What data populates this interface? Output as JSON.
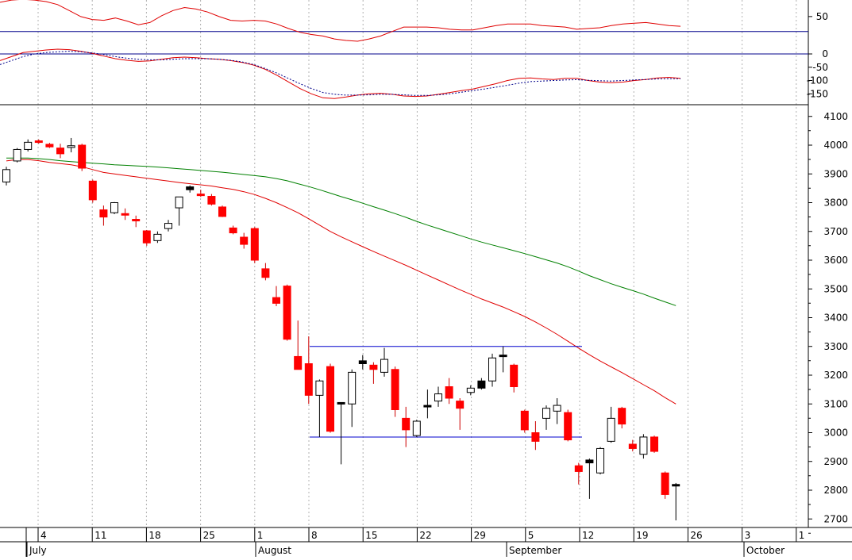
{
  "chart_data": [
    {
      "type": "line",
      "panel": "oscillator",
      "series": [
        {
          "color": "#e00000",
          "values": [
            69,
            72,
            73,
            72,
            70,
            66,
            58,
            50,
            46,
            45,
            48,
            44,
            39,
            42,
            51,
            58,
            62,
            60,
            56,
            50,
            45,
            44,
            45,
            44,
            40,
            34,
            29,
            26,
            24,
            20,
            18,
            17,
            20,
            24,
            30,
            36,
            36,
            36,
            35,
            33,
            32,
            32,
            35,
            38,
            40,
            40,
            40,
            38,
            37,
            36,
            33,
            34,
            35,
            38,
            40,
            41,
            42,
            40,
            38,
            37
          ]
        }
      ],
      "ticks": [
        50
      ],
      "ylim": [
        0,
        70
      ],
      "reference_lines": [
        30,
        0
      ],
      "grid": "vertical dotted"
    },
    {
      "type": "line",
      "panel": "macd",
      "series": [
        {
          "color": "#e00000",
          "style": "solid",
          "values": [
            -25,
            -10,
            5,
            10,
            15,
            18,
            16,
            10,
            2,
            -8,
            -18,
            -24,
            -28,
            -26,
            -20,
            -14,
            -12,
            -14,
            -18,
            -20,
            -25,
            -32,
            -42,
            -58,
            -80,
            -105,
            -130,
            -150,
            -165,
            -168,
            -162,
            -155,
            -150,
            -148,
            -152,
            -158,
            -160,
            -158,
            -152,
            -145,
            -138,
            -132,
            -122,
            -112,
            -100,
            -92,
            -90,
            -94,
            -96,
            -92,
            -92,
            -100,
            -106,
            -108,
            -106,
            -100,
            -96,
            -90,
            -88,
            -92
          ]
        },
        {
          "color": "#00008b",
          "style": "dotted",
          "values": [
            -40,
            -25,
            -10,
            0,
            5,
            8,
            10,
            8,
            4,
            -2,
            -10,
            -16,
            -20,
            -22,
            -22,
            -20,
            -18,
            -18,
            -18,
            -20,
            -24,
            -30,
            -40,
            -55,
            -72,
            -92,
            -112,
            -130,
            -145,
            -152,
            -155,
            -155,
            -154,
            -152,
            -152,
            -154,
            -156,
            -156,
            -154,
            -150,
            -144,
            -138,
            -132,
            -125,
            -118,
            -110,
            -104,
            -102,
            -100,
            -98,
            -97,
            -99,
            -101,
            -102,
            -100,
            -98,
            -96,
            -94,
            -93,
            -93
          ]
        }
      ],
      "ticks": [
        0,
        -50,
        -100,
        -150
      ],
      "ylim": [
        -175,
        20
      ],
      "reference_lines": [
        0
      ],
      "grid": "vertical dotted"
    },
    {
      "type": "candlestick",
      "panel": "price",
      "y_ticks": [
        4100,
        4000,
        3900,
        3800,
        3700,
        3600,
        3500,
        3400,
        3300,
        3200,
        3100,
        3000,
        2900,
        2800,
        2700
      ],
      "ylim": [
        2580,
        4170
      ],
      "x_tick_labels": [
        "4",
        "11",
        "18",
        "25",
        "1",
        "8",
        "15",
        "22",
        "29",
        "5",
        "12",
        "19",
        "26",
        "3",
        "1"
      ],
      "month_labels": [
        "July",
        "August",
        "September",
        "October"
      ],
      "grid": "vertical dotted",
      "candles": [
        {
          "o": 3872,
          "h": 3925,
          "l": 3860,
          "c": 3915,
          "color": "white"
        },
        {
          "o": 3945,
          "h": 3990,
          "l": 3940,
          "c": 3985,
          "color": "white"
        },
        {
          "o": 3985,
          "h": 4020,
          "l": 3978,
          "c": 4010,
          "color": "white"
        },
        {
          "o": 4015,
          "h": 4020,
          "l": 4005,
          "c": 4010,
          "color": "red"
        },
        {
          "o": 4003,
          "h": 4008,
          "l": 3990,
          "c": 3994,
          "color": "red"
        },
        {
          "o": 3990,
          "h": 4005,
          "l": 3955,
          "c": 3970,
          "color": "red"
        },
        {
          "o": 3992,
          "h": 4025,
          "l": 3975,
          "c": 3998,
          "color": "white"
        },
        {
          "o": 4000,
          "h": 4005,
          "l": 3910,
          "c": 3920,
          "color": "red"
        },
        {
          "o": 3875,
          "h": 3880,
          "l": 3800,
          "c": 3810,
          "color": "red"
        },
        {
          "o": 3750,
          "h": 3790,
          "l": 3720,
          "c": 3775,
          "color": "red"
        },
        {
          "o": 3765,
          "h": 3802,
          "l": 3760,
          "c": 3800,
          "color": "white"
        },
        {
          "o": 3762,
          "h": 3780,
          "l": 3740,
          "c": 3760,
          "color": "red"
        },
        {
          "o": 3742,
          "h": 3755,
          "l": 3715,
          "c": 3740,
          "color": "red"
        },
        {
          "o": 3702,
          "h": 3705,
          "l": 3650,
          "c": 3660,
          "color": "red"
        },
        {
          "o": 3668,
          "h": 3700,
          "l": 3660,
          "c": 3690,
          "color": "white"
        },
        {
          "o": 3710,
          "h": 3740,
          "l": 3700,
          "c": 3728,
          "color": "white"
        },
        {
          "o": 3782,
          "h": 3820,
          "l": 3720,
          "c": 3820,
          "color": "white"
        },
        {
          "o": 3845,
          "h": 3860,
          "l": 3835,
          "c": 3855,
          "color": "black"
        },
        {
          "o": 3830,
          "h": 3845,
          "l": 3820,
          "c": 3825,
          "color": "red"
        },
        {
          "o": 3822,
          "h": 3830,
          "l": 3790,
          "c": 3795,
          "color": "red"
        },
        {
          "o": 3785,
          "h": 3790,
          "l": 3750,
          "c": 3752,
          "color": "red"
        },
        {
          "o": 3712,
          "h": 3720,
          "l": 3690,
          "c": 3695,
          "color": "red"
        },
        {
          "o": 3680,
          "h": 3695,
          "l": 3640,
          "c": 3655,
          "color": "red"
        },
        {
          "o": 3710,
          "h": 3715,
          "l": 3590,
          "c": 3600,
          "color": "red"
        },
        {
          "o": 3570,
          "h": 3590,
          "l": 3530,
          "c": 3540,
          "color": "red"
        },
        {
          "o": 3470,
          "h": 3510,
          "l": 3440,
          "c": 3450,
          "color": "red"
        },
        {
          "o": 3510,
          "h": 3515,
          "l": 3320,
          "c": 3325,
          "color": "red"
        },
        {
          "o": 3265,
          "h": 3390,
          "l": 3230,
          "c": 3220,
          "color": "red"
        },
        {
          "o": 3240,
          "h": 3335,
          "l": 3100,
          "c": 3130,
          "color": "red"
        },
        {
          "o": 3130,
          "h": 3185,
          "l": 2985,
          "c": 3180,
          "color": "white"
        },
        {
          "o": 3230,
          "h": 3240,
          "l": 3000,
          "c": 3005,
          "color": "red"
        },
        {
          "o": 3105,
          "h": 3105,
          "l": 2890,
          "c": 3100,
          "color": "black"
        },
        {
          "o": 3100,
          "h": 3220,
          "l": 3020,
          "c": 3210,
          "color": "white"
        },
        {
          "o": 3240,
          "h": 3270,
          "l": 3220,
          "c": 3250,
          "color": "black"
        },
        {
          "o": 3235,
          "h": 3245,
          "l": 3170,
          "c": 3220,
          "color": "red"
        },
        {
          "o": 3210,
          "h": 3295,
          "l": 3195,
          "c": 3255,
          "color": "white"
        },
        {
          "o": 3220,
          "h": 3230,
          "l": 3055,
          "c": 3080,
          "color": "red"
        },
        {
          "o": 3050,
          "h": 3090,
          "l": 2950,
          "c": 3010,
          "color": "red"
        },
        {
          "o": 2990,
          "h": 3045,
          "l": 2985,
          "c": 3040,
          "color": "white"
        },
        {
          "o": 3090,
          "h": 3150,
          "l": 3050,
          "c": 3095,
          "color": "black"
        },
        {
          "o": 3110,
          "h": 3160,
          "l": 3090,
          "c": 3135,
          "color": "white"
        },
        {
          "o": 3160,
          "h": 3190,
          "l": 3100,
          "c": 3120,
          "color": "red"
        },
        {
          "o": 3110,
          "h": 3120,
          "l": 3010,
          "c": 3085,
          "color": "red"
        },
        {
          "o": 3140,
          "h": 3165,
          "l": 3130,
          "c": 3155,
          "color": "white"
        },
        {
          "o": 3155,
          "h": 3190,
          "l": 3150,
          "c": 3180,
          "color": "black"
        },
        {
          "o": 3180,
          "h": 3275,
          "l": 3160,
          "c": 3260,
          "color": "white"
        },
        {
          "o": 3270,
          "h": 3300,
          "l": 3210,
          "c": 3265,
          "color": "black"
        },
        {
          "o": 3235,
          "h": 3240,
          "l": 3140,
          "c": 3160,
          "color": "red"
        },
        {
          "o": 3075,
          "h": 3080,
          "l": 3000,
          "c": 3010,
          "color": "red"
        },
        {
          "o": 3000,
          "h": 3040,
          "l": 2940,
          "c": 2970,
          "color": "red"
        },
        {
          "o": 3050,
          "h": 3095,
          "l": 3010,
          "c": 3085,
          "color": "white"
        },
        {
          "o": 3075,
          "h": 3120,
          "l": 3030,
          "c": 3095,
          "color": "white"
        },
        {
          "o": 3070,
          "h": 3080,
          "l": 2970,
          "c": 2975,
          "color": "red"
        },
        {
          "o": 2885,
          "h": 2895,
          "l": 2820,
          "c": 2865,
          "color": "red"
        },
        {
          "o": 2895,
          "h": 2910,
          "l": 2770,
          "c": 2905,
          "color": "black"
        },
        {
          "o": 2860,
          "h": 2950,
          "l": 2855,
          "c": 2945,
          "color": "white"
        },
        {
          "o": 2970,
          "h": 3090,
          "l": 2965,
          "c": 3050,
          "color": "white"
        },
        {
          "o": 3085,
          "h": 3090,
          "l": 3015,
          "c": 3030,
          "color": "red"
        },
        {
          "o": 2960,
          "h": 2975,
          "l": 2935,
          "c": 2945,
          "color": "red"
        },
        {
          "o": 2925,
          "h": 2995,
          "l": 2910,
          "c": 2985,
          "color": "white"
        },
        {
          "o": 2985,
          "h": 2990,
          "l": 2930,
          "c": 2935,
          "color": "red"
        },
        {
          "o": 2860,
          "h": 2865,
          "l": 2770,
          "c": 2785,
          "color": "red"
        },
        {
          "o": 2820,
          "h": 2825,
          "l": 2695,
          "c": 2820,
          "color": "black"
        }
      ],
      "moving_averages": [
        {
          "color": "#e00000",
          "values": [
            3945,
            3950,
            3950,
            3946,
            3940,
            3936,
            3932,
            3925,
            3915,
            3905,
            3900,
            3895,
            3890,
            3885,
            3880,
            3875,
            3870,
            3866,
            3862,
            3858,
            3852,
            3846,
            3838,
            3828,
            3815,
            3800,
            3783,
            3765,
            3744,
            3722,
            3700,
            3681,
            3664,
            3647,
            3630,
            3614,
            3598,
            3582,
            3565,
            3548,
            3531,
            3514,
            3497,
            3481,
            3465,
            3451,
            3437,
            3421,
            3404,
            3385,
            3364,
            3342,
            3318,
            3294,
            3271,
            3249,
            3229,
            3209,
            3188,
            3167,
            3146,
            3122,
            3100
          ]
        },
        {
          "color": "#008000",
          "values": [
            3955,
            3955,
            3955,
            3953,
            3950,
            3946,
            3943,
            3940,
            3937,
            3935,
            3932,
            3930,
            3928,
            3926,
            3924,
            3921,
            3918,
            3915,
            3912,
            3909,
            3906,
            3902,
            3898,
            3894,
            3890,
            3884,
            3876,
            3866,
            3856,
            3845,
            3833,
            3821,
            3810,
            3798,
            3786,
            3774,
            3762,
            3749,
            3735,
            3722,
            3710,
            3698,
            3686,
            3674,
            3663,
            3653,
            3643,
            3633,
            3623,
            3612,
            3601,
            3590,
            3577,
            3562,
            3546,
            3532,
            3518,
            3506,
            3494,
            3482,
            3468,
            3455,
            3442
          ]
        }
      ],
      "range_lines": [
        3300,
        2985
      ]
    }
  ]
}
